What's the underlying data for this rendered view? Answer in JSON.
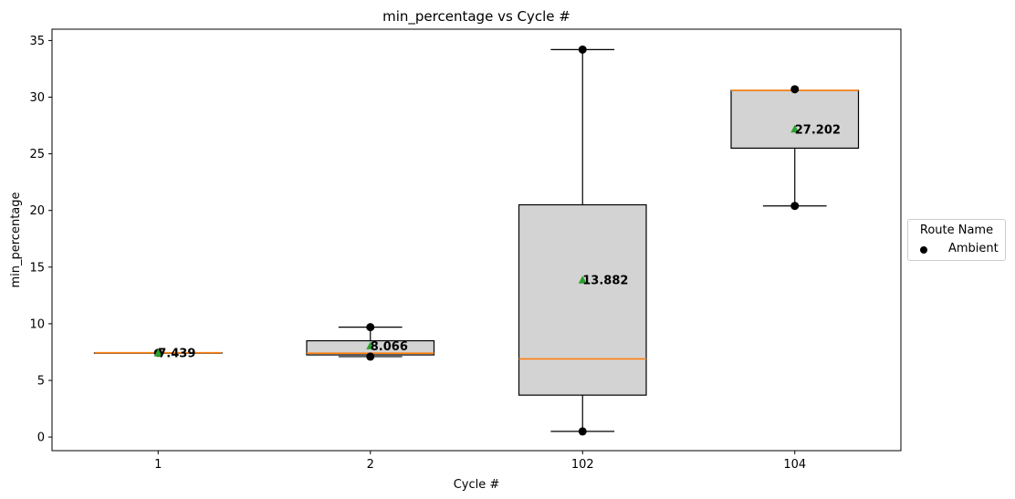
{
  "chart_data": {
    "type": "box",
    "title": "min_percentage vs Cycle #",
    "xlabel": "Cycle #",
    "ylabel": "min_percentage",
    "ylim": [
      -1.2,
      36
    ],
    "yticks": [
      0,
      5,
      10,
      15,
      20,
      25,
      30,
      35
    ],
    "categories": [
      "1",
      "2",
      "102",
      "104"
    ],
    "boxes": [
      {
        "category": "1",
        "q1": 7.439,
        "median": 7.439,
        "q3": 7.439,
        "whisker_low": 7.439,
        "whisker_high": 7.439,
        "mean": 7.439,
        "mean_label": "7.439",
        "points": [
          7.439
        ]
      },
      {
        "category": "2",
        "q1": 7.25,
        "median": 7.4,
        "q3": 8.5,
        "whisker_low": 7.1,
        "whisker_high": 9.7,
        "mean": 8.066,
        "mean_label": "8.066",
        "points": [
          7.1,
          9.7
        ]
      },
      {
        "category": "102",
        "q1": 3.7,
        "median": 6.9,
        "q3": 20.5,
        "whisker_low": 0.5,
        "whisker_high": 34.2,
        "mean": 13.882,
        "mean_label": "13.882",
        "points": [
          0.5,
          34.2
        ]
      },
      {
        "category": "104",
        "q1": 25.5,
        "median": 30.6,
        "q3": 30.6,
        "whisker_low": 20.4,
        "whisker_high": 30.6,
        "mean": 27.202,
        "mean_label": "27.202",
        "points": [
          20.4,
          30.7
        ]
      }
    ],
    "colors": {
      "box_fill": "#d3d3d3",
      "median": "#ff7f0e",
      "mean_marker": "#2ca02c",
      "points": "#000000"
    },
    "legend": {
      "title": "Route Name",
      "entries": [
        "Ambient"
      ],
      "placement": "center-right outside"
    }
  }
}
